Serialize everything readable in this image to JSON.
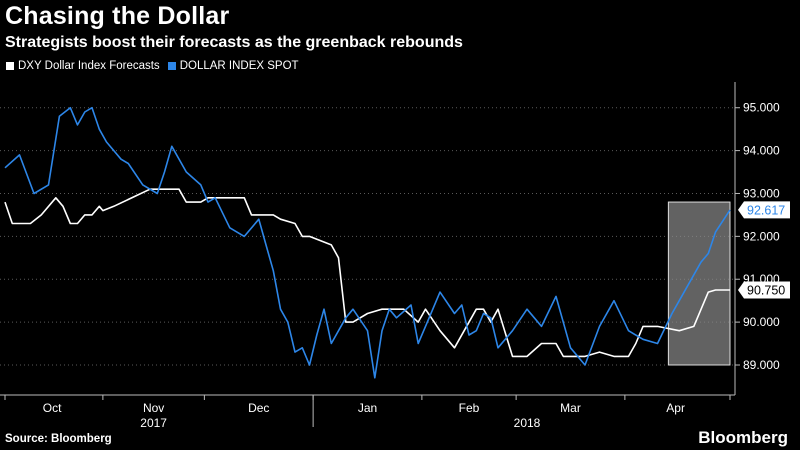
{
  "header": {
    "title": "Chasing the Dollar",
    "subtitle": "Strategists boost their forecasts as the greenback rebounds"
  },
  "legend": {
    "items": [
      {
        "label": "DXY Dollar Index Forecasts",
        "color": "#ffffff"
      },
      {
        "label": "DOLLAR INDEX SPOT",
        "color": "#2d86e8"
      }
    ]
  },
  "footer": {
    "source": "Source: Bloomberg",
    "brand": "Bloomberg"
  },
  "chart_data": {
    "type": "line",
    "ylim": [
      88.3,
      95.6
    ],
    "y_ticks": [
      "89.000",
      "90.000",
      "91.000",
      "92.000",
      "93.000",
      "94.000",
      "95.000"
    ],
    "x_ticks": [
      "Oct",
      "Nov",
      "Dec",
      "Jan",
      "Feb",
      "Mar",
      "Apr"
    ],
    "x_year_labels": [
      "2017",
      "2018"
    ],
    "grid": true,
    "last_value_labels": [
      "92.617",
      "90.750"
    ],
    "highlight": {
      "x_start": "Apr",
      "y_range": [
        89.0,
        92.8
      ]
    },
    "series": [
      {
        "name": "DXY Dollar Index Forecasts",
        "color": "#ffffff",
        "x": [
          0,
          0.01,
          0.02,
          0.035,
          0.05,
          0.07,
          0.08,
          0.09,
          0.1,
          0.11,
          0.12,
          0.13,
          0.135,
          0.15,
          0.2,
          0.24,
          0.25,
          0.27,
          0.28,
          0.3,
          0.33,
          0.34,
          0.36,
          0.37,
          0.38,
          0.4,
          0.41,
          0.42,
          0.45,
          0.46,
          0.47,
          0.48,
          0.5,
          0.52,
          0.55,
          0.57,
          0.58,
          0.6,
          0.62,
          0.65,
          0.66,
          0.67,
          0.68,
          0.7,
          0.72,
          0.74,
          0.76,
          0.77,
          0.8,
          0.82,
          0.84,
          0.86,
          0.87,
          0.88,
          0.9,
          0.93,
          0.95,
          0.97,
          0.98,
          1.0
        ],
        "y": [
          92.8,
          92.3,
          92.3,
          92.3,
          92.5,
          92.9,
          92.7,
          92.3,
          92.3,
          92.5,
          92.5,
          92.7,
          92.6,
          92.7,
          93.1,
          93.1,
          92.8,
          92.8,
          92.9,
          92.9,
          92.9,
          92.5,
          92.5,
          92.5,
          92.4,
          92.3,
          92.0,
          92.0,
          91.8,
          91.5,
          90.0,
          90.0,
          90.2,
          90.3,
          90.3,
          90.0,
          90.3,
          89.8,
          89.4,
          90.3,
          90.3,
          90.0,
          90.3,
          89.2,
          89.2,
          89.5,
          89.5,
          89.2,
          89.2,
          89.3,
          89.2,
          89.2,
          89.5,
          89.9,
          89.9,
          89.8,
          89.9,
          90.7,
          90.75,
          90.75
        ]
      },
      {
        "name": "DOLLAR INDEX SPOT",
        "color": "#2d86e8",
        "x": [
          0,
          0.02,
          0.04,
          0.06,
          0.075,
          0.09,
          0.1,
          0.11,
          0.12,
          0.13,
          0.14,
          0.15,
          0.16,
          0.17,
          0.19,
          0.21,
          0.22,
          0.23,
          0.25,
          0.27,
          0.28,
          0.29,
          0.31,
          0.33,
          0.35,
          0.36,
          0.37,
          0.38,
          0.39,
          0.4,
          0.41,
          0.42,
          0.43,
          0.44,
          0.45,
          0.47,
          0.48,
          0.5,
          0.51,
          0.52,
          0.53,
          0.54,
          0.56,
          0.57,
          0.58,
          0.6,
          0.62,
          0.63,
          0.64,
          0.65,
          0.66,
          0.67,
          0.68,
          0.7,
          0.72,
          0.73,
          0.74,
          0.76,
          0.78,
          0.8,
          0.82,
          0.84,
          0.86,
          0.88,
          0.9,
          0.92,
          0.94,
          0.96,
          0.97,
          0.98,
          1.0
        ],
        "y": [
          93.6,
          93.9,
          93.0,
          93.2,
          94.8,
          95.0,
          94.6,
          94.9,
          95.0,
          94.5,
          94.2,
          94.0,
          93.8,
          93.7,
          93.2,
          93.0,
          93.5,
          94.1,
          93.5,
          93.2,
          92.8,
          92.9,
          92.2,
          92.0,
          92.4,
          91.8,
          91.2,
          90.3,
          90.0,
          89.3,
          89.4,
          89.0,
          89.7,
          90.3,
          89.5,
          90.1,
          90.3,
          89.8,
          88.7,
          89.8,
          90.3,
          90.1,
          90.4,
          89.5,
          89.9,
          90.7,
          90.2,
          90.4,
          89.7,
          89.8,
          90.2,
          90.1,
          89.4,
          89.8,
          90.3,
          90.1,
          89.9,
          90.6,
          89.4,
          89.0,
          89.9,
          90.5,
          89.8,
          89.6,
          89.5,
          90.2,
          90.8,
          91.4,
          91.6,
          92.1,
          92.617
        ]
      }
    ]
  }
}
